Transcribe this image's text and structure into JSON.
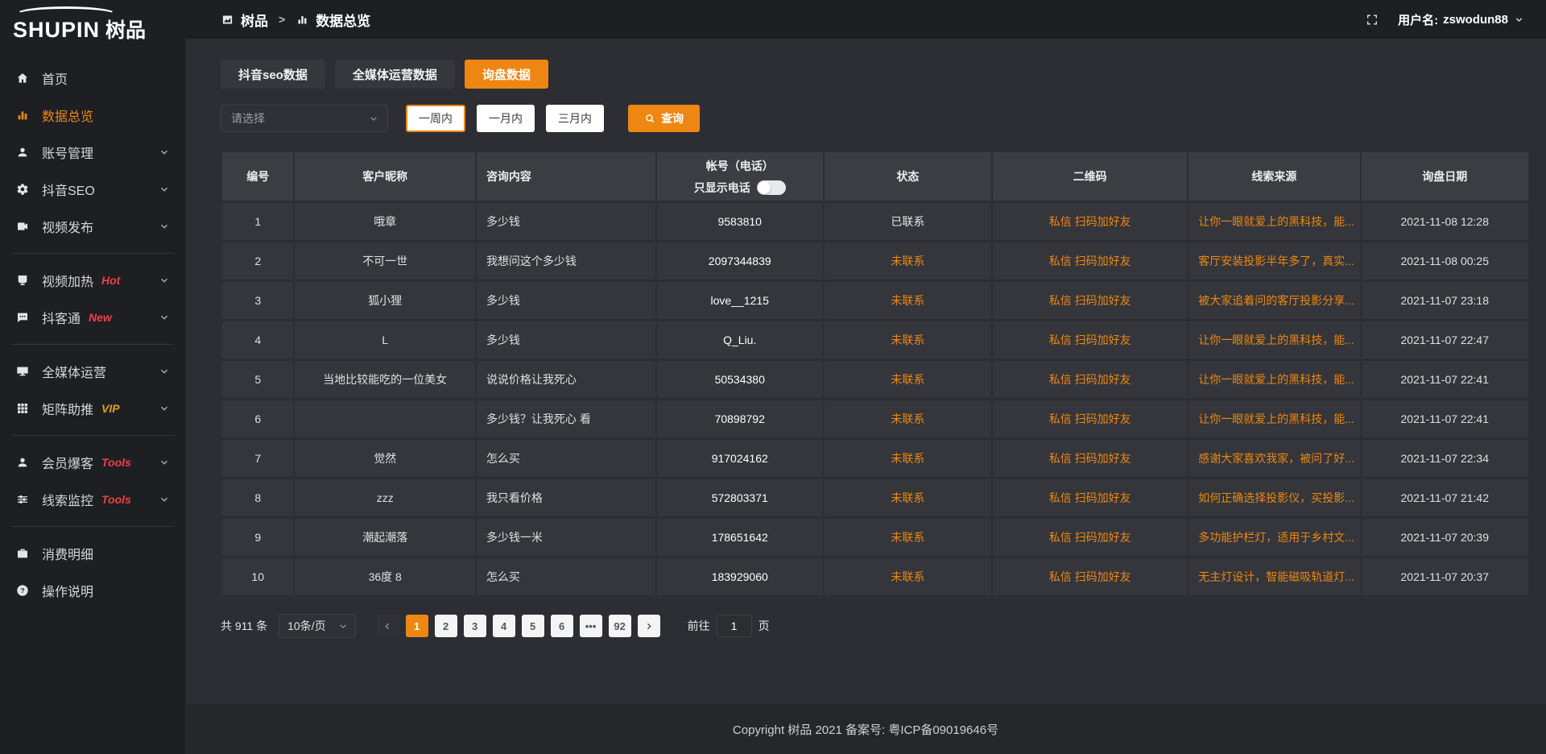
{
  "app": {
    "logo_en": "SHUPIN",
    "logo_cn": "树品"
  },
  "header": {
    "breadcrumb": [
      {
        "label": "树品",
        "icon": "app-icon"
      },
      {
        "label": "数据总览",
        "icon": "chart-icon"
      }
    ],
    "separator": ">",
    "username_label": "用户名:",
    "username": "zswodun88"
  },
  "sidebar": {
    "items": [
      {
        "label": "首页",
        "icon": "home-icon"
      },
      {
        "label": "数据总览",
        "icon": "chart-icon",
        "active": true
      },
      {
        "label": "账号管理",
        "icon": "user-icon",
        "chevron": true
      },
      {
        "label": "抖音SEO",
        "icon": "gear-icon",
        "chevron": true
      },
      {
        "label": "视频发布",
        "icon": "video-icon",
        "chevron": true,
        "divider_after": true
      },
      {
        "label": "视频加热",
        "icon": "heat-icon",
        "badge": "Hot",
        "badge_class": "red",
        "chevron": true
      },
      {
        "label": "抖客通",
        "icon": "chat-icon",
        "badge": "New",
        "badge_class": "red",
        "chevron": true,
        "divider_after": true
      },
      {
        "label": "全媒体运营",
        "icon": "monitor-icon",
        "chevron": true
      },
      {
        "label": "矩阵助推",
        "icon": "grid-icon",
        "badge": "VIP",
        "badge_class": "yellow",
        "chevron": true,
        "divider_after": true
      },
      {
        "label": "会员爆客",
        "icon": "member-icon",
        "badge": "Tools",
        "badge_class": "red",
        "chevron": true
      },
      {
        "label": "线索监控",
        "icon": "sliders-icon",
        "badge": "Tools",
        "badge_class": "red",
        "chevron": true,
        "divider_after": true
      },
      {
        "label": "消费明细",
        "icon": "briefcase-icon"
      },
      {
        "label": "操作说明",
        "icon": "question-icon"
      }
    ]
  },
  "tabs": [
    {
      "label": "抖音seo数据"
    },
    {
      "label": "全媒体运营数据"
    },
    {
      "label": "询盘数据",
      "active": true
    }
  ],
  "filter": {
    "select_placeholder": "请选择",
    "ranges": [
      {
        "label": "一周内",
        "selected": true
      },
      {
        "label": "一月内"
      },
      {
        "label": "三月内"
      }
    ],
    "search_label": "查询"
  },
  "table": {
    "columns": [
      "编号",
      "客户昵称",
      "咨询内容",
      "帐号（电话）",
      "状态",
      "二维码",
      "线索来源",
      "询盘日期"
    ],
    "phone_toggle_label": "只显示电话",
    "rows": [
      {
        "no": "1",
        "nickname": "哦章",
        "content": "多少钱",
        "account": "9583810",
        "status": "已联系",
        "status_class": "contacted",
        "qr": "私信 扫码加好友",
        "source": "让你一眼就爱上的黑科技，能...",
        "date": "2021-11-08 12:28"
      },
      {
        "no": "2",
        "nickname": "不可一世",
        "content": "我想问这个多少钱",
        "account": "2097344839",
        "status": "未联系",
        "status_class": "uncontacted",
        "qr": "私信 扫码加好友",
        "source": "客厅安装投影半年多了，真实...",
        "date": "2021-11-08 00:25"
      },
      {
        "no": "3",
        "nickname": "狐小狸",
        "content": "多少钱",
        "account": "love__1215",
        "status": "未联系",
        "status_class": "uncontacted",
        "qr": "私信 扫码加好友",
        "source": "被大家追着问的客厅投影分享...",
        "date": "2021-11-07 23:18"
      },
      {
        "no": "4",
        "nickname": "L",
        "content": "多少钱",
        "account": "Q_Liu.",
        "status": "未联系",
        "status_class": "uncontacted",
        "qr": "私信 扫码加好友",
        "source": "让你一眼就爱上的黑科技，能...",
        "date": "2021-11-07 22:47"
      },
      {
        "no": "5",
        "nickname": "当地比较能吃的一位美女",
        "content": "说说价格让我死心",
        "account": "50534380",
        "status": "未联系",
        "status_class": "uncontacted",
        "qr": "私信 扫码加好友",
        "source": "让你一眼就爱上的黑科技，能...",
        "date": "2021-11-07 22:41"
      },
      {
        "no": "6",
        "nickname": "",
        "content": "多少钱？让我死心 看",
        "account": "70898792",
        "status": "未联系",
        "status_class": "uncontacted",
        "qr": "私信 扫码加好友",
        "source": "让你一眼就爱上的黑科技，能...",
        "date": "2021-11-07 22:41"
      },
      {
        "no": "7",
        "nickname": "觉然",
        "content": "怎么买",
        "account": "917024162",
        "status": "未联系",
        "status_class": "uncontacted",
        "qr": "私信 扫码加好友",
        "source": "感谢大家喜欢我家，被问了好...",
        "date": "2021-11-07 22:34"
      },
      {
        "no": "8",
        "nickname": "zzz",
        "content": "我只看价格",
        "account": "572803371",
        "status": "未联系",
        "status_class": "uncontacted",
        "qr": "私信 扫码加好友",
        "source": "如何正确选择投影仪，买投影...",
        "date": "2021-11-07 21:42"
      },
      {
        "no": "9",
        "nickname": "潮起潮落",
        "content": "多少钱一米",
        "account": "178651642",
        "status": "未联系",
        "status_class": "uncontacted",
        "qr": "私信 扫码加好友",
        "source": "多功能护栏灯，适用于乡村文...",
        "date": "2021-11-07 20:39"
      },
      {
        "no": "10",
        "nickname": "36度 8",
        "content": "怎么买",
        "account": "183929060",
        "status": "未联系",
        "status_class": "uncontacted",
        "qr": "私信 扫码加好友",
        "source": "无主灯设计，智能磁吸轨道灯...",
        "date": "2021-11-07 20:37"
      }
    ]
  },
  "pagination": {
    "total_label": "共 911 条",
    "page_size": "10条/页",
    "pages": [
      {
        "label": "1",
        "active": true
      },
      {
        "label": "2"
      },
      {
        "label": "3"
      },
      {
        "label": "4"
      },
      {
        "label": "5"
      },
      {
        "label": "6"
      },
      {
        "label": "•••"
      },
      {
        "label": "92"
      }
    ],
    "goto_label": "前往",
    "goto_value": "1",
    "page_suffix": "页"
  },
  "footer": {
    "copyright": "Copyright 树品 2021 备案号: 粤ICP备09019646号"
  },
  "colors": {
    "accent_orange": "#ee8712",
    "badge_red": "#f23f45",
    "badge_yellow": "#e0a21a",
    "sidebar_bg": "#1d1f23",
    "content_bg": "#2c2e33",
    "cell_bg": "#34363b"
  }
}
